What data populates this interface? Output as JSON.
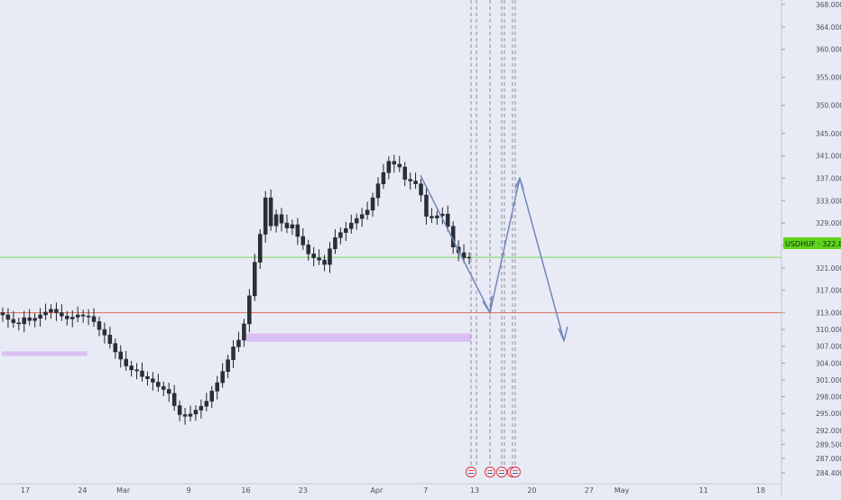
{
  "chart_data": {
    "type": "candlestick",
    "symbol_tag": "USDHUF · 322.877",
    "current_price": 322.877,
    "y_ticks": [
      368.0,
      364.0,
      360.0,
      355.0,
      350.0,
      345.0,
      341.0,
      337.0,
      333.0,
      329.0,
      325.0,
      321.0,
      317.0,
      313.0,
      310.0,
      307.0,
      304.0,
      301.0,
      298.0,
      295.0,
      292.0,
      289.5,
      287.0,
      284.4
    ],
    "y_tick_labels": [
      "368.000",
      "364.000",
      "360.000",
      "355.000",
      "350.000",
      "345.000",
      "341.000",
      "337.000",
      "333.000",
      "329.000",
      "325.000",
      "321.000",
      "317.000",
      "313.000",
      "310.000",
      "307.000",
      "304.000",
      "301.000",
      "298.000",
      "295.000",
      "292.000",
      "289.500",
      "287.000",
      "284.400"
    ],
    "x_tick_labels": [
      "17",
      "24",
      "Mar",
      "9",
      "16",
      "23",
      "Apr",
      "7",
      "13",
      "20",
      "27",
      "May",
      "11",
      "18"
    ],
    "horizontal_lines": [
      {
        "price": 322.877,
        "color": "#7ed957"
      },
      {
        "price": 313.0,
        "color": "#e2715e"
      }
    ],
    "support_zones": [
      {
        "from_label": "17",
        "to_label": "Mar",
        "price_low": 305.3,
        "price_high": 306.1,
        "color": "#d7b7f2"
      },
      {
        "from_label": "16",
        "to_label": "13",
        "price_low": 307.8,
        "price_high": 309.3,
        "color": "#d7b7f2"
      }
    ],
    "event_lines": [
      "13",
      "20"
    ],
    "event_badge_count": 5,
    "projection_path": [
      {
        "x_label": "Apr",
        "price": 337.0
      },
      {
        "x_label": "13",
        "price": 313.0
      },
      {
        "x_label": "20",
        "price": 337.0
      },
      {
        "x_label": "27",
        "price": 308.0
      }
    ],
    "candles_open": [
      313.0,
      312.6,
      311.8,
      311.2,
      311.0,
      312.1,
      311.6,
      312.0,
      312.6,
      313.1,
      313.6,
      313.0,
      312.4,
      311.9,
      312.2,
      312.6,
      312.4,
      312.3,
      311.4,
      310.0,
      309.0,
      307.5,
      306.0,
      304.7,
      303.5,
      302.8,
      302.6,
      301.6,
      301.2,
      300.6,
      299.8,
      299.3,
      298.6,
      296.4,
      294.8,
      294.5,
      294.9,
      295.6,
      296.3,
      297.2,
      299.0,
      300.5,
      302.5,
      304.6,
      306.9,
      308.1,
      311.0,
      316.0,
      322.0,
      327.0,
      333.5,
      328.5,
      330.5,
      329.0,
      328.1,
      328.7,
      326.6,
      325.1,
      323.5,
      322.8,
      322.4,
      321.6,
      324.4,
      326.4,
      327.3,
      328.0,
      329.0,
      329.8,
      330.5,
      331.3,
      333.5,
      336.0,
      338.0,
      340.0,
      339.5,
      339.0,
      336.8,
      336.5,
      336.0,
      334.0,
      330.2,
      329.9,
      330.3,
      330.6,
      328.4,
      324.7,
      323.7,
      322.8
    ],
    "candles_close": [
      312.6,
      311.8,
      311.2,
      311.0,
      312.1,
      311.6,
      312.0,
      312.6,
      313.1,
      313.6,
      313.0,
      312.4,
      311.9,
      312.2,
      312.6,
      312.4,
      312.3,
      311.4,
      310.0,
      309.0,
      307.5,
      306.0,
      304.7,
      303.5,
      302.8,
      302.6,
      301.6,
      301.2,
      300.6,
      299.8,
      299.3,
      298.6,
      296.4,
      294.8,
      294.5,
      294.9,
      295.6,
      296.3,
      297.2,
      299.0,
      300.5,
      302.5,
      304.6,
      306.9,
      308.1,
      311.0,
      316.0,
      322.0,
      327.0,
      333.5,
      328.5,
      330.5,
      329.0,
      328.1,
      328.7,
      326.6,
      325.1,
      323.5,
      322.8,
      322.4,
      321.6,
      324.4,
      326.4,
      327.3,
      328.0,
      329.0,
      329.8,
      330.5,
      331.3,
      333.5,
      336.0,
      338.0,
      340.0,
      339.5,
      339.0,
      336.8,
      336.5,
      336.0,
      334.0,
      330.2,
      329.9,
      330.3,
      330.6,
      328.4,
      324.7,
      323.7,
      322.8,
      322.9
    ]
  }
}
